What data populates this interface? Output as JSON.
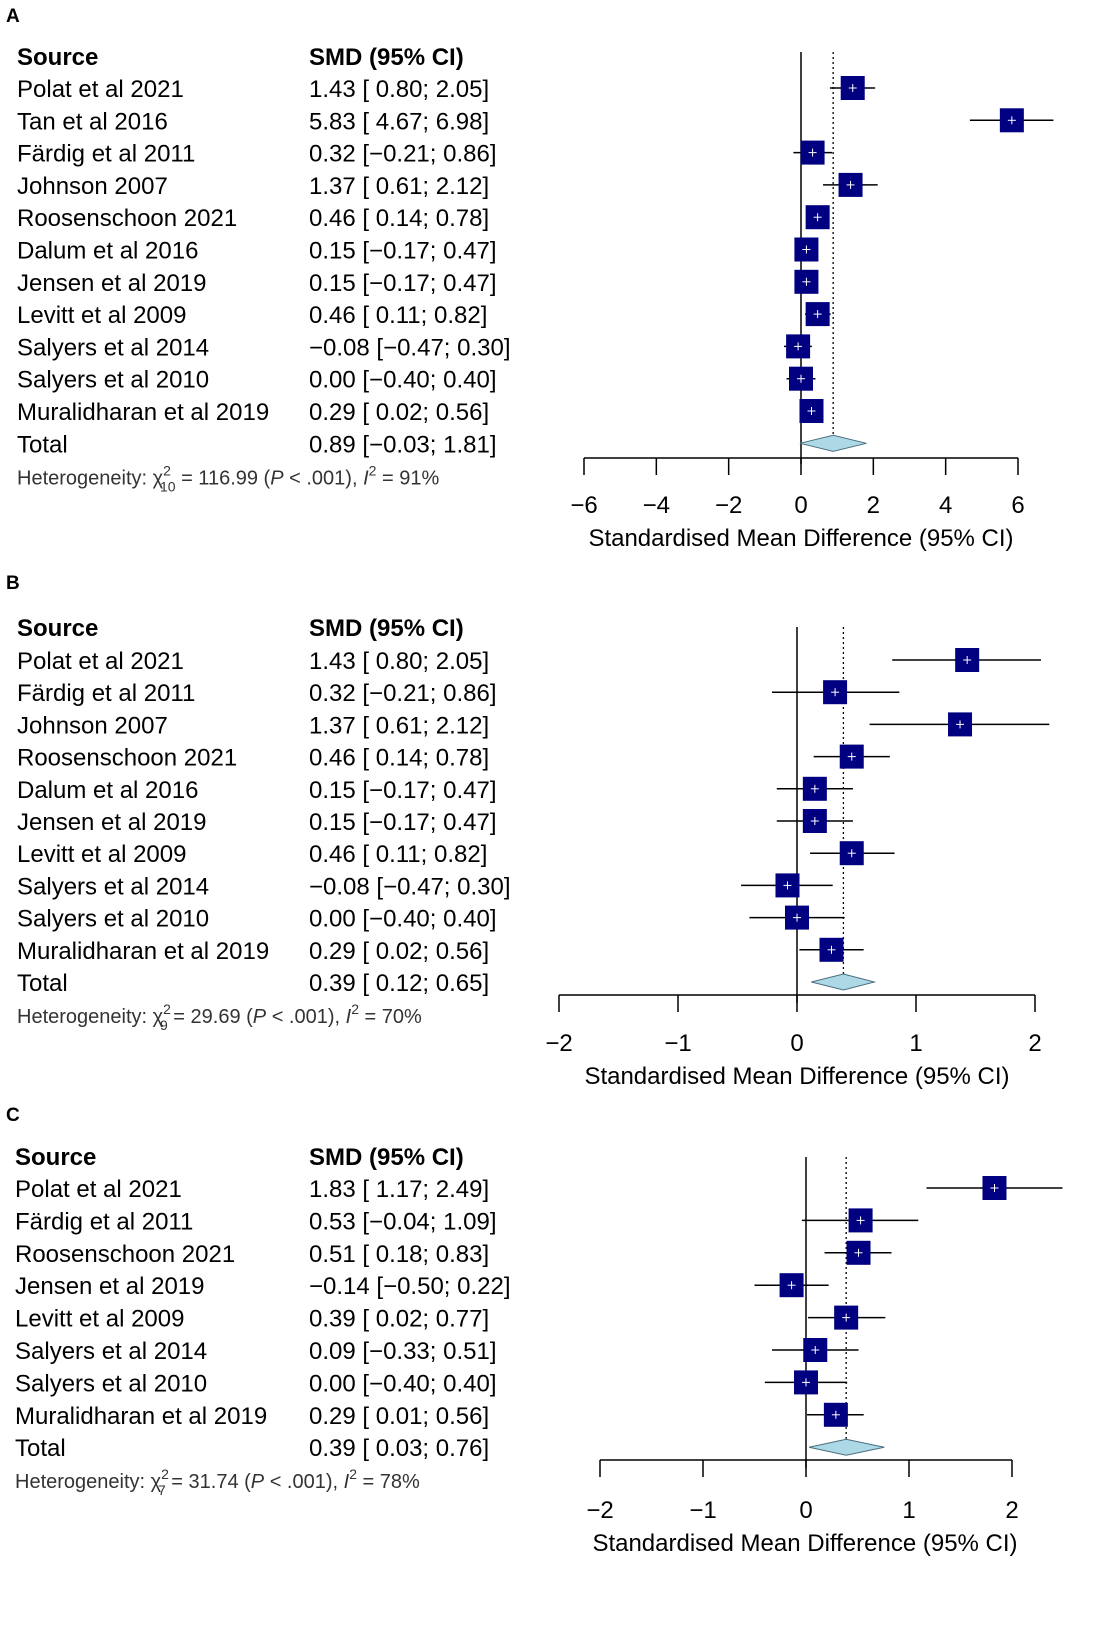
{
  "colors": {
    "box": "#000080",
    "diamond": "#add8e6",
    "line": "#000000"
  },
  "chart_data": [
    {
      "panel_label": "A",
      "type": "forest",
      "source_header": "Source",
      "smd_header": "SMD (95% CI)",
      "xlabel": "Standardised Mean Difference (95% CI)",
      "xlim": [
        -6,
        6
      ],
      "xticks": [
        -6,
        -4,
        -2,
        0,
        2,
        4,
        6
      ],
      "xtick_labels": [
        "−6",
        "−4",
        "−2",
        "0",
        "2",
        "4",
        "6"
      ],
      "studies": [
        {
          "source": "Polat et al 2021",
          "ci_text": "1.43 [ 0.80; 2.05]",
          "smd": 1.43,
          "lower": 0.8,
          "upper": 2.05
        },
        {
          "source": "Tan et al 2016",
          "ci_text": "5.83 [ 4.67; 6.98]",
          "smd": 5.83,
          "lower": 4.67,
          "upper": 6.98
        },
        {
          "source": "Färdig et al 2011",
          "ci_text": "0.32 [−0.21; 0.86]",
          "smd": 0.32,
          "lower": -0.21,
          "upper": 0.86
        },
        {
          "source": "Johnson 2007",
          "ci_text": "1.37 [ 0.61; 2.12]",
          "smd": 1.37,
          "lower": 0.61,
          "upper": 2.12
        },
        {
          "source": "Roosenschoon 2021",
          "ci_text": "0.46 [ 0.14; 0.78]",
          "smd": 0.46,
          "lower": 0.14,
          "upper": 0.78
        },
        {
          "source": "Dalum et al 2016",
          "ci_text": "0.15 [−0.17; 0.47]",
          "smd": 0.15,
          "lower": -0.17,
          "upper": 0.47
        },
        {
          "source": "Jensen et al 2019",
          "ci_text": "0.15 [−0.17; 0.47]",
          "smd": 0.15,
          "lower": -0.17,
          "upper": 0.47
        },
        {
          "source": "Levitt et al 2009",
          "ci_text": "0.46 [ 0.11; 0.82]",
          "smd": 0.46,
          "lower": 0.11,
          "upper": 0.82
        },
        {
          "source": "Salyers et al 2014",
          "ci_text": "−0.08 [−0.47; 0.30]",
          "smd": -0.08,
          "lower": -0.47,
          "upper": 0.3
        },
        {
          "source": "Salyers et al 2010",
          "ci_text": "0.00 [−0.40; 0.40]",
          "smd": 0.0,
          "lower": -0.4,
          "upper": 0.4
        },
        {
          "source": "Muralidharan et al 2019",
          "ci_text": "0.29 [ 0.02; 0.56]",
          "smd": 0.29,
          "lower": 0.02,
          "upper": 0.56
        }
      ],
      "total": {
        "source": "Total",
        "ci_text": "0.89 [−0.03; 1.81]",
        "smd": 0.89,
        "lower": -0.03,
        "upper": 1.81
      },
      "heterogeneity": {
        "prefix": "Heterogeneity: χ",
        "df": "10",
        "stat": " = 116.99 (",
        "p_symbol": "P",
        "p_value": " < .001), ",
        "i_symbol": "I",
        "i_value": " = 91%",
        "sup": "2"
      }
    },
    {
      "panel_label": "B",
      "type": "forest",
      "source_header": "Source",
      "smd_header": "SMD (95% CI)",
      "xlabel": "Standardised Mean Difference (95% CI)",
      "xlim": [
        -2,
        2
      ],
      "xticks": [
        -2,
        -1,
        0,
        1,
        2
      ],
      "xtick_labels": [
        "−2",
        "−1",
        "0",
        "1",
        "2"
      ],
      "studies": [
        {
          "source": "Polat et al 2021",
          "ci_text": "1.43 [ 0.80; 2.05]",
          "smd": 1.43,
          "lower": 0.8,
          "upper": 2.05
        },
        {
          "source": "Färdig et al 2011",
          "ci_text": "0.32 [−0.21; 0.86]",
          "smd": 0.32,
          "lower": -0.21,
          "upper": 0.86
        },
        {
          "source": "Johnson 2007",
          "ci_text": "1.37 [ 0.61; 2.12]",
          "smd": 1.37,
          "lower": 0.61,
          "upper": 2.12
        },
        {
          "source": "Roosenschoon 2021",
          "ci_text": "0.46 [ 0.14; 0.78]",
          "smd": 0.46,
          "lower": 0.14,
          "upper": 0.78
        },
        {
          "source": "Dalum et al 2016",
          "ci_text": "0.15 [−0.17; 0.47]",
          "smd": 0.15,
          "lower": -0.17,
          "upper": 0.47
        },
        {
          "source": "Jensen et al 2019",
          "ci_text": "0.15 [−0.17; 0.47]",
          "smd": 0.15,
          "lower": -0.17,
          "upper": 0.47
        },
        {
          "source": "Levitt et al 2009",
          "ci_text": "0.46 [ 0.11; 0.82]",
          "smd": 0.46,
          "lower": 0.11,
          "upper": 0.82
        },
        {
          "source": "Salyers et al 2014",
          "ci_text": "−0.08 [−0.47; 0.30]",
          "smd": -0.08,
          "lower": -0.47,
          "upper": 0.3
        },
        {
          "source": "Salyers et al 2010",
          "ci_text": "0.00 [−0.40; 0.40]",
          "smd": 0.0,
          "lower": -0.4,
          "upper": 0.4
        },
        {
          "source": "Muralidharan et al 2019",
          "ci_text": "0.29 [ 0.02; 0.56]",
          "smd": 0.29,
          "lower": 0.02,
          "upper": 0.56
        }
      ],
      "total": {
        "source": "Total",
        "ci_text": "0.39 [ 0.12; 0.65]",
        "smd": 0.39,
        "lower": 0.12,
        "upper": 0.65
      },
      "heterogeneity": {
        "prefix": "Heterogeneity: χ",
        "df": "9",
        "stat": " = 29.69 (",
        "p_symbol": "P",
        "p_value": " < .001), ",
        "i_symbol": "I",
        "i_value": " = 70%",
        "sup": "2"
      }
    },
    {
      "panel_label": "C",
      "type": "forest",
      "source_header": "Source",
      "smd_header": "SMD (95% CI)",
      "xlabel": "Standardised Mean Difference (95% CI)",
      "xlim": [
        -2,
        2
      ],
      "xticks": [
        -2,
        -1,
        0,
        1,
        2
      ],
      "xtick_labels": [
        "−2",
        "−1",
        "0",
        "1",
        "2"
      ],
      "studies": [
        {
          "source": "Polat et al 2021",
          "ci_text": "1.83 [ 1.17; 2.49]",
          "smd": 1.83,
          "lower": 1.17,
          "upper": 2.49
        },
        {
          "source": "Färdig et al 2011",
          "ci_text": "0.53 [−0.04; 1.09]",
          "smd": 0.53,
          "lower": -0.04,
          "upper": 1.09
        },
        {
          "source": "Roosenschoon 2021",
          "ci_text": "0.51 [ 0.18; 0.83]",
          "smd": 0.51,
          "lower": 0.18,
          "upper": 0.83
        },
        {
          "source": "Jensen et al 2019",
          "ci_text": "−0.14 [−0.50; 0.22]",
          "smd": -0.14,
          "lower": -0.5,
          "upper": 0.22
        },
        {
          "source": "Levitt et al 2009",
          "ci_text": "0.39 [ 0.02; 0.77]",
          "smd": 0.39,
          "lower": 0.02,
          "upper": 0.77
        },
        {
          "source": "Salyers et al 2014",
          "ci_text": "0.09 [−0.33; 0.51]",
          "smd": 0.09,
          "lower": -0.33,
          "upper": 0.51
        },
        {
          "source": "Salyers et al 2010",
          "ci_text": "0.00 [−0.40; 0.40]",
          "smd": 0.0,
          "lower": -0.4,
          "upper": 0.4
        },
        {
          "source": "Muralidharan et al 2019",
          "ci_text": "0.29 [ 0.01; 0.56]",
          "smd": 0.29,
          "lower": 0.01,
          "upper": 0.56
        }
      ],
      "total": {
        "source": "Total",
        "ci_text": "0.39 [ 0.03; 0.76]",
        "smd": 0.39,
        "lower": 0.03,
        "upper": 0.76
      },
      "heterogeneity": {
        "prefix": "Heterogeneity: χ",
        "df": "7",
        "stat": " = 31.74 (",
        "p_symbol": "P",
        "p_value": " < .001), ",
        "i_symbol": "I",
        "i_value": " = 78%",
        "sup": "2"
      }
    }
  ]
}
